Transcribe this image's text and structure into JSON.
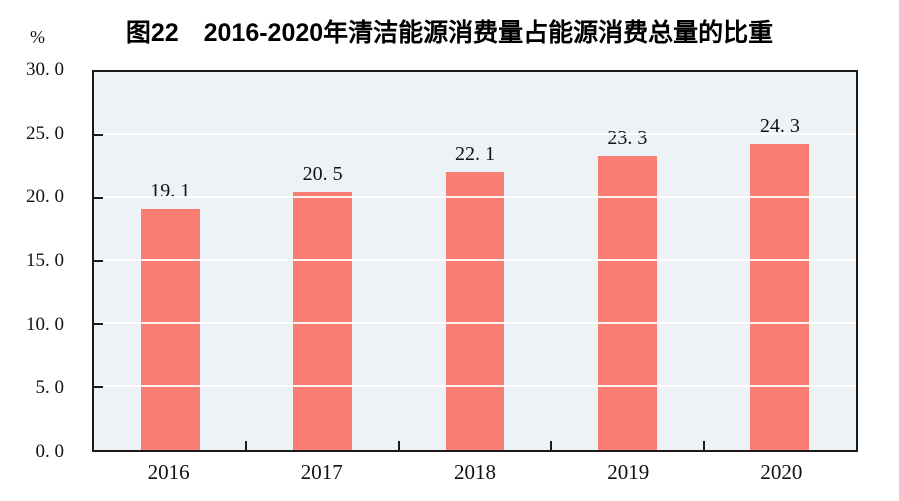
{
  "figure": {
    "title": "图22　2016-2020年清洁能源消费量占能源消费总量的比重",
    "y_axis_unit": "%"
  },
  "chart_data": {
    "type": "bar",
    "title": "图22　2016-2020年清洁能源消费量占能源消费总量的比重",
    "xlabel": "",
    "ylabel": "%",
    "categories": [
      "2016",
      "2017",
      "2018",
      "2019",
      "2020"
    ],
    "values": [
      19.1,
      20.5,
      22.1,
      23.3,
      24.3
    ],
    "value_labels": [
      "19. 1",
      "20. 5",
      "22. 1",
      "23. 3",
      "24. 3"
    ],
    "ylim": [
      0,
      30
    ],
    "ytick_step": 5,
    "ytick_labels": [
      "0. 0",
      "5. 0",
      "10. 0",
      "15. 0",
      "20. 0",
      "25. 0",
      "30. 0"
    ],
    "grid": "horizontal-white-lines",
    "legend": "none",
    "colors": {
      "bar": "#FA7D73",
      "plot_background": "#ECF2F5",
      "gridline": "#FFFFFF",
      "axis": "#1A1A1A",
      "text": "#111111"
    }
  }
}
